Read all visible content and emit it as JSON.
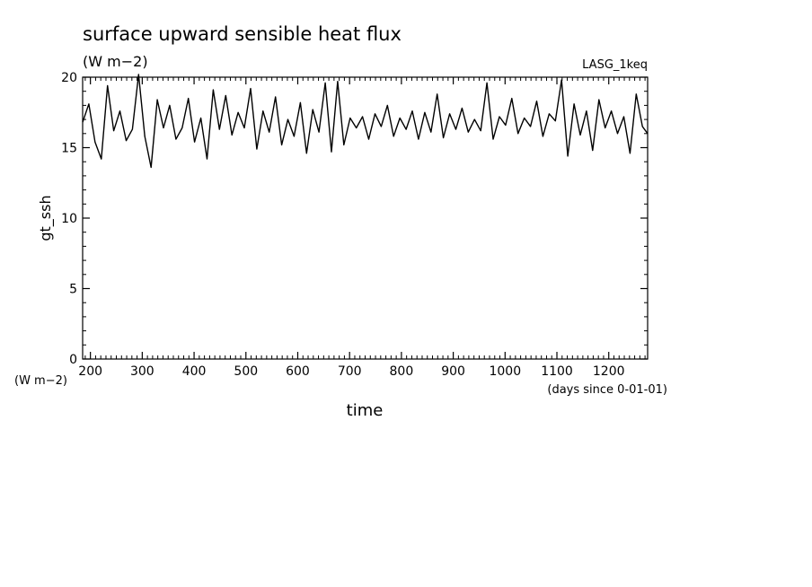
{
  "chart_data": {
    "type": "line",
    "title": "surface upward sensible heat flux",
    "subtitle": "(W m−2)",
    "source_label": "LASG_1keq",
    "xlabel": "time",
    "x_units": "(days since 0-01-01)",
    "ylabel": "gt_ssh",
    "y_units": "(W m−2)",
    "xlim": [
      185,
      1275
    ],
    "ylim": [
      0,
      20
    ],
    "x_ticks": [
      200,
      300,
      400,
      500,
      600,
      700,
      800,
      900,
      1000,
      1100,
      1200
    ],
    "y_ticks": [
      0,
      5,
      10,
      15,
      20
    ],
    "grid": false,
    "series": [
      {
        "x": [
          185,
          197,
          209,
          221,
          233,
          245,
          257,
          269,
          281,
          293,
          305,
          317,
          329,
          341,
          353,
          365,
          377,
          389,
          401,
          413,
          425,
          437,
          449,
          461,
          473,
          485,
          497,
          509,
          521,
          533,
          545,
          557,
          569,
          581,
          593,
          605,
          617,
          629,
          641,
          653,
          665,
          677,
          689,
          701,
          713,
          725,
          737,
          749,
          761,
          773,
          785,
          797,
          809,
          821,
          833,
          845,
          857,
          869,
          881,
          893,
          905,
          917,
          929,
          941,
          953,
          965,
          977,
          989,
          1001,
          1013,
          1025,
          1037,
          1049,
          1061,
          1073,
          1085,
          1097,
          1109,
          1121,
          1133,
          1145,
          1157,
          1169,
          1181,
          1193,
          1205,
          1217,
          1229,
          1241,
          1253,
          1265,
          1275
        ],
        "y": [
          16.8,
          18.1,
          15.4,
          14.2,
          19.4,
          16.2,
          17.6,
          15.5,
          16.3,
          20.2,
          15.8,
          13.6,
          18.4,
          16.4,
          18.0,
          15.6,
          16.4,
          18.5,
          15.4,
          17.1,
          14.2,
          19.1,
          16.3,
          18.7,
          15.9,
          17.5,
          16.4,
          19.2,
          14.9,
          17.6,
          16.1,
          18.6,
          15.2,
          17.0,
          15.8,
          18.2,
          14.6,
          17.7,
          16.1,
          19.6,
          14.7,
          19.7,
          15.2,
          17.1,
          16.4,
          17.2,
          15.6,
          17.4,
          16.5,
          18.0,
          15.8,
          17.1,
          16.3,
          17.6,
          15.6,
          17.5,
          16.1,
          18.8,
          15.7,
          17.4,
          16.3,
          17.8,
          16.1,
          17.0,
          16.2,
          19.6,
          15.6,
          17.2,
          16.6,
          18.5,
          16.0,
          17.1,
          16.5,
          18.3,
          15.8,
          17.4,
          16.9,
          19.8,
          14.4,
          18.1,
          15.9,
          17.6,
          14.8,
          18.4,
          16.4,
          17.6,
          16.0,
          17.2,
          14.6,
          18.8,
          16.5,
          16.0
        ]
      }
    ]
  }
}
